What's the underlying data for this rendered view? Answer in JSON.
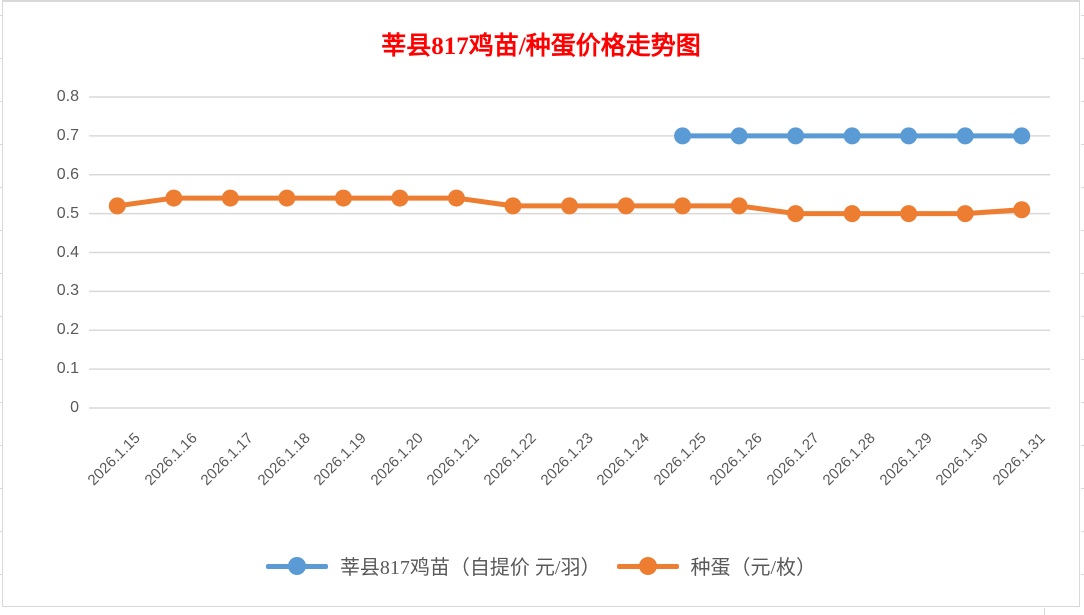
{
  "chart_data": {
    "type": "line",
    "title": "莘县817鸡苗/种蛋价格走势图",
    "title_color": "#FF0000",
    "categories": [
      "2026.1.15",
      "2026.1.16",
      "2026.1.17",
      "2026.1.18",
      "2026.1.19",
      "2026.1.20",
      "2026.1.21",
      "2026.1.22",
      "2026.1.23",
      "2026.1.24",
      "2026.1.25",
      "2026.1.26",
      "2026.1.27",
      "2026.1.28",
      "2026.1.29",
      "2026.1.30",
      "2026.1.31"
    ],
    "series": [
      {
        "name": "莘县817鸡苗（自提价 元/羽）",
        "color": "#5B9BD5",
        "values": [
          null,
          null,
          null,
          null,
          null,
          null,
          null,
          null,
          null,
          null,
          0.7,
          0.7,
          0.7,
          0.7,
          0.7,
          0.7,
          0.7
        ]
      },
      {
        "name": "种蛋（元/枚）",
        "color": "#ED7D31",
        "values": [
          0.52,
          0.54,
          0.54,
          0.54,
          0.54,
          0.54,
          0.54,
          0.52,
          0.52,
          0.52,
          0.52,
          0.52,
          0.5,
          0.5,
          0.5,
          0.5,
          0.51
        ]
      }
    ],
    "ylim": [
      0,
      0.8
    ],
    "y_tick_labels": [
      "0.8",
      "0.7",
      "0.6",
      "0.5",
      "0.4",
      "0.3",
      "0.2",
      "0.1",
      "0"
    ],
    "grid": "horizontal",
    "legend_position": "bottom",
    "axis_text_color": "#595959",
    "gridline_color": "#D9D9D9"
  }
}
